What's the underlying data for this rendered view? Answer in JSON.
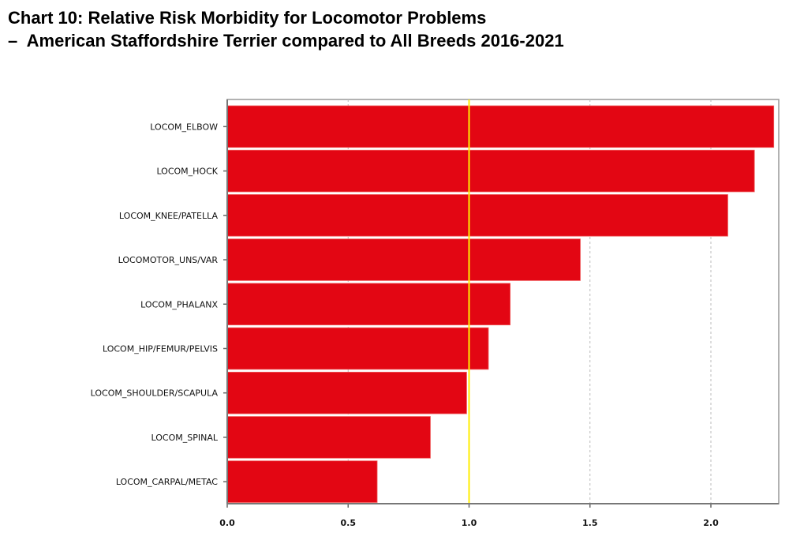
{
  "chart_data": {
    "type": "bar",
    "orientation": "horizontal",
    "title": "Chart 10: Relative Risk Morbidity for Locomotor Problems",
    "subtitle": "–  American Staffordshire Terrier compared to All Breeds 2016-2021",
    "categories": [
      "LOCOM_ELBOW",
      "LOCOM_HOCK",
      "LOCOM_KNEE/PATELLA",
      "LOCOMOTOR_UNS/VAR",
      "LOCOM_PHALANX",
      "LOCOM_HIP/FEMUR/PELVIS",
      "LOCOM_SHOULDER/SCAPULA",
      "LOCOM_SPINAL",
      "LOCOM_CARPAL/METAC"
    ],
    "values": [
      2.26,
      2.18,
      2.07,
      1.46,
      1.17,
      1.08,
      0.99,
      0.84,
      0.62
    ],
    "xlabel": "",
    "ylabel": "",
    "xlim": [
      0,
      2.28
    ],
    "xticks": [
      "0.0",
      "0.5",
      "1.0",
      "1.5",
      "2.0"
    ],
    "reference_line": 1.0,
    "grid": true,
    "colors": {
      "bar": "#e30613",
      "reference": "#ffee00",
      "grid": "#bbbbbb"
    }
  }
}
